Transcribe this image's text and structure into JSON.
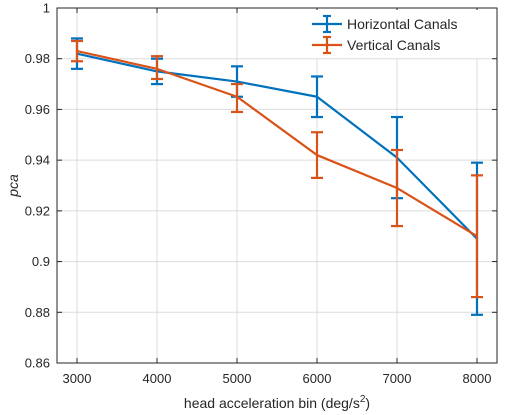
{
  "chart_data": {
    "type": "line",
    "title": "",
    "xlabel": "head acceleration bin (deg/s",
    "xlabel_superscript": "2",
    "xlabel_suffix": ")",
    "ylabel": "pca",
    "x": [
      3000,
      4000,
      5000,
      6000,
      7000,
      8000
    ],
    "x_tick_labels": [
      "3000",
      "4000",
      "5000",
      "6000",
      "7000",
      "8000"
    ],
    "xlim": [
      2750,
      8250
    ],
    "ylim": [
      0.86,
      1.0
    ],
    "y_ticks": [
      0.86,
      0.88,
      0.9,
      0.92,
      0.94,
      0.96,
      0.98,
      1.0
    ],
    "y_tick_labels": [
      "0.86",
      "0.88",
      "0.9",
      "0.92",
      "0.94",
      "0.96",
      "0.98",
      "1"
    ],
    "grid": true,
    "legend_position": "top-right",
    "series": [
      {
        "name": "Horizontal Canals",
        "color": "#0072BD",
        "values": [
          0.982,
          0.975,
          0.971,
          0.965,
          0.941,
          0.909
        ],
        "err_low": [
          0.976,
          0.97,
          0.965,
          0.957,
          0.925,
          0.879
        ],
        "err_high": [
          0.988,
          0.98,
          0.977,
          0.973,
          0.957,
          0.939
        ]
      },
      {
        "name": "Vertical Canals",
        "color": "#D95319",
        "values": [
          0.983,
          0.976,
          0.965,
          0.942,
          0.929,
          0.91
        ],
        "err_low": [
          0.979,
          0.972,
          0.959,
          0.933,
          0.914,
          0.886
        ],
        "err_high": [
          0.987,
          0.981,
          0.97,
          0.951,
          0.944,
          0.934
        ]
      }
    ]
  }
}
